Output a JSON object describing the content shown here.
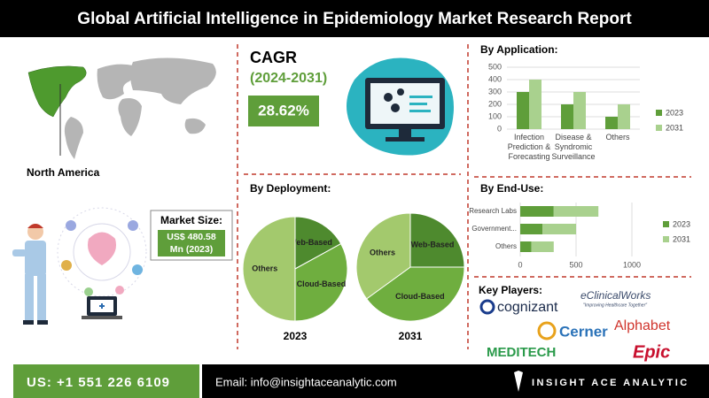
{
  "header": {
    "title": "Global Artificial Intelligence in Epidemiology Market Research Report"
  },
  "region": "North America",
  "cagr": {
    "label": "CAGR",
    "period": "(2024-2031)",
    "value": "28.62%"
  },
  "market_size": {
    "label": "Market Size:",
    "value_line1": "US$ 480.58",
    "value_line2": "Mn (2023)"
  },
  "key_players": {
    "title": "Key Players:",
    "names": [
      "cognizant",
      "eClinicalWorks",
      "Alphabet",
      "Cerner",
      "MEDITECH",
      "Epic"
    ],
    "tagline": "\"Improving Healthcare Together\""
  },
  "footer": {
    "phone": "US: +1 551 226 6109",
    "email": "Email: info@insightaceanalytic.com",
    "brand": "INSIGHT ACE ANALYTIC"
  },
  "chart_data": [
    {
      "type": "bar",
      "title": "By Application:",
      "categories": [
        "Infection Prediction & Forecasting",
        "Disease & Syndromic Surveillance",
        "Others"
      ],
      "series": [
        {
          "name": "2023",
          "color": "#5f9e3a",
          "values": [
            300,
            200,
            100
          ]
        },
        {
          "name": "2031",
          "color": "#a9d18e",
          "values": [
            400,
            300,
            200
          ]
        }
      ],
      "ylim": [
        0,
        500
      ],
      "yticks": [
        0,
        100,
        200,
        300,
        400,
        500
      ],
      "grid": true,
      "legend": "right"
    },
    {
      "type": "pie",
      "title": "By Deployment:",
      "categories": [
        "Web-Based",
        "Cloud-Based",
        "Others"
      ],
      "colors": [
        "#4e8a2e",
        "#6fae3f",
        "#a3c96d"
      ],
      "series": [
        {
          "name": "2023",
          "values": [
            17,
            33,
            50
          ]
        },
        {
          "name": "2031",
          "values": [
            25,
            40,
            35
          ]
        }
      ]
    },
    {
      "type": "stacked-hbar",
      "title": "By End-Use:",
      "categories": [
        "Research Labs",
        "Government...",
        "Others"
      ],
      "series": [
        {
          "name": "2023",
          "color": "#5f9e3a",
          "values": [
            300,
            200,
            100
          ]
        },
        {
          "name": "2031",
          "color": "#a9d18e",
          "values": [
            400,
            300,
            200
          ]
        }
      ],
      "xlim": [
        0,
        1000
      ],
      "xticks": [
        0,
        500,
        1000
      ],
      "grid": true,
      "legend": "right"
    }
  ]
}
